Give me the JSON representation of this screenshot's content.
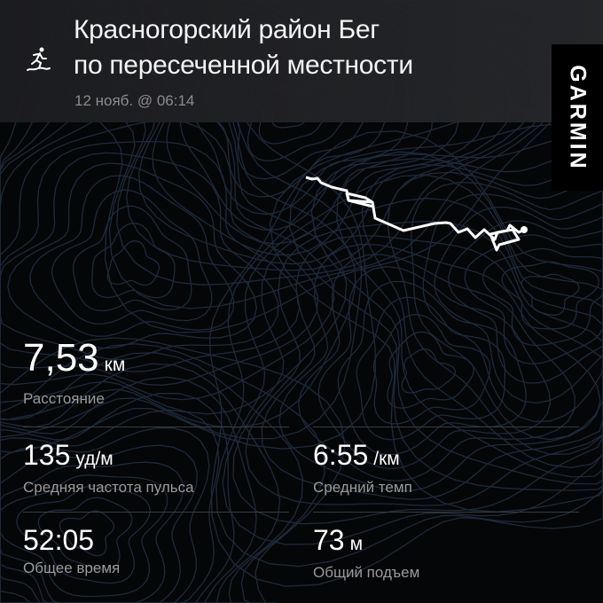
{
  "activity": {
    "title_line1": "Красногорский район Бег",
    "title_line2": "по пересеченной местности",
    "date": "12 нояб. @ 06:14",
    "icon": "trail-run-icon"
  },
  "brand": {
    "logo": "GARMIN"
  },
  "stats": {
    "distance": {
      "value": "7,53",
      "unit": "км",
      "label": "Расстояние"
    },
    "heart_rate": {
      "value": "135",
      "unit": "уд/м",
      "label": "Средняя частота пульса"
    },
    "pace": {
      "value": "6:55",
      "unit": "/км",
      "label": "Средний темп"
    },
    "time": {
      "value": "52:05",
      "label": "Общее время"
    },
    "ascent": {
      "value": "73",
      "unit": "м",
      "label": "Общий подъем"
    }
  }
}
